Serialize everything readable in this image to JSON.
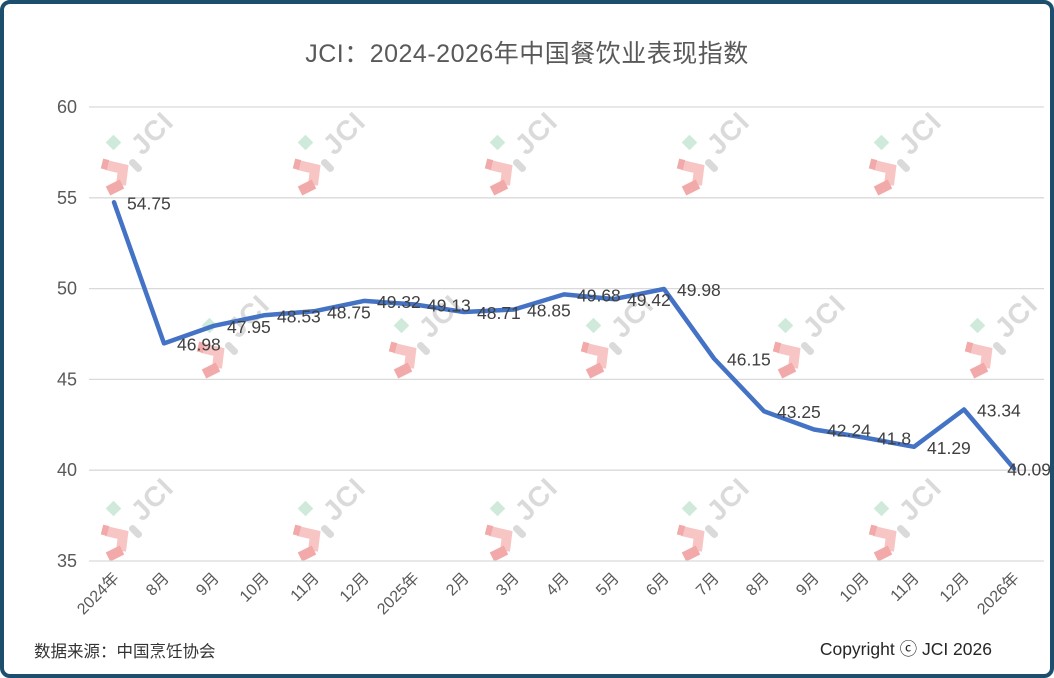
{
  "chart_data": {
    "type": "line",
    "title": "JCI：2024-2026年中国餐饮业表现指数",
    "categories": [
      "2024年",
      "8月",
      "9月",
      "10月",
      "11月",
      "12月",
      "2025年",
      "2月",
      "3月",
      "4月",
      "5月",
      "6月",
      "7月",
      "8月",
      "9月",
      "10月",
      "11月",
      "12月",
      "2026年"
    ],
    "values": [
      54.75,
      46.98,
      47.95,
      48.53,
      48.75,
      49.32,
      49.13,
      48.71,
      48.85,
      49.68,
      49.42,
      49.98,
      46.15,
      43.25,
      42.24,
      41.8,
      41.29,
      43.34,
      40.09
    ],
    "xlabel": "",
    "ylabel": "",
    "ylim": [
      35,
      60
    ],
    "yticks": [
      35,
      40,
      45,
      50,
      55,
      60
    ],
    "grid": true,
    "legend_position": "none",
    "data_labels": true,
    "colors": {
      "line": "#4472C4",
      "grid": "#D9D9D9",
      "axis_text": "#595959",
      "data_label": "#404040"
    }
  },
  "footer": {
    "source": "数据来源：中国烹饪协会",
    "copyright": "Copyright ⓒ JCI 2026"
  },
  "watermark": {
    "text": "JCI",
    "colors": {
      "red": "#F2A9A9",
      "red_light": "#F8C5C5",
      "green": "#CFEADA",
      "gray": "#DADADA"
    }
  },
  "frame": {
    "border_color": "#1D4E6E",
    "background": "#FFFFFF"
  }
}
